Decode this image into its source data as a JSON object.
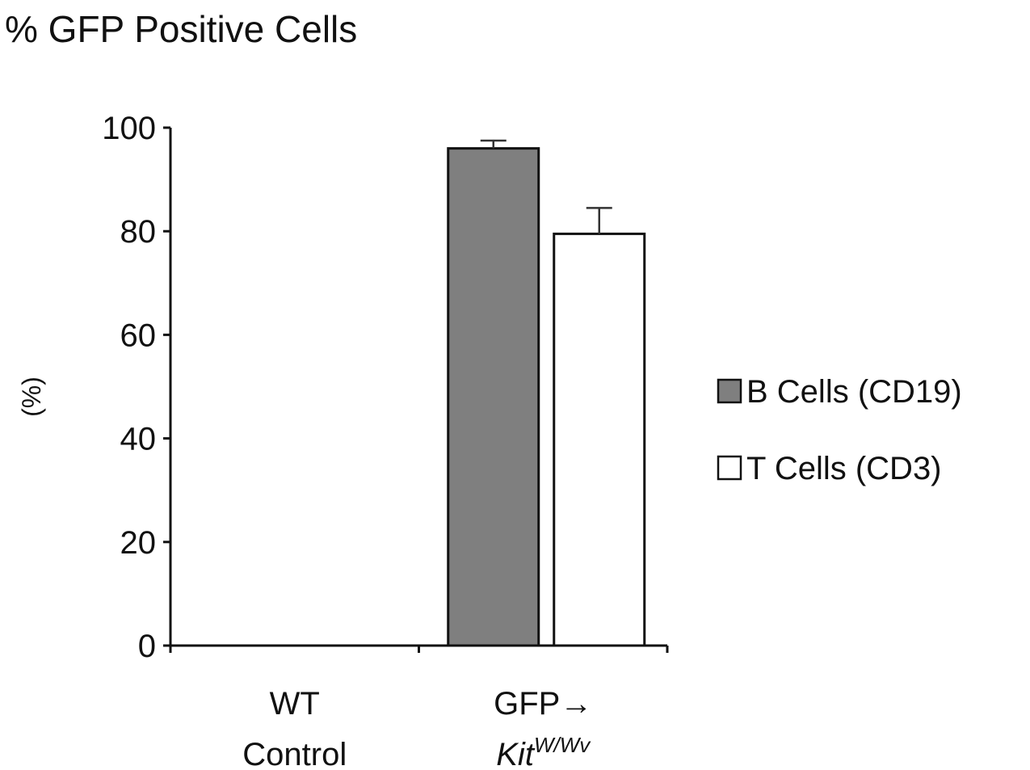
{
  "chart_data": {
    "type": "bar",
    "title": "% GFP Positive Cells",
    "ylabel": "(%)",
    "xlabel": "",
    "ylim": [
      0,
      100
    ],
    "yticks": [
      0,
      20,
      40,
      60,
      80,
      100
    ],
    "categories": [
      {
        "line1": "WT",
        "line2_base": "Control",
        "line2_sup": ""
      },
      {
        "line1": "GFP→",
        "line2_base": "Kit",
        "line2_sup": "W/Wv"
      }
    ],
    "series": [
      {
        "name": "B Cells (CD19)",
        "color": "#7f7f7f",
        "values": [
          0,
          96
        ],
        "errors": [
          0,
          1.5
        ]
      },
      {
        "name": "T Cells (CD3)",
        "color": "#ffffff",
        "values": [
          0,
          79.5
        ],
        "errors": [
          0,
          5
        ]
      }
    ],
    "legend_position": "right",
    "grid": false
  }
}
